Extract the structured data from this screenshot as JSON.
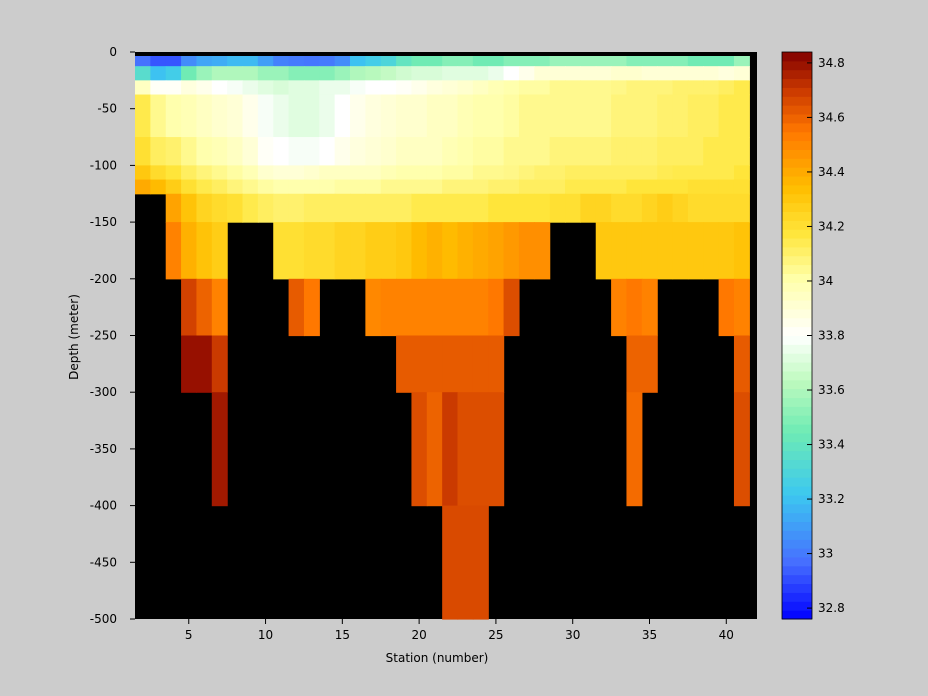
{
  "chart_data": {
    "type": "heatmap",
    "title": "",
    "xlabel": "Station (number)",
    "ylabel": "Depth (meter)",
    "xlim": [
      1.5,
      42
    ],
    "ylim": [
      -500,
      0
    ],
    "xticks": [
      5,
      10,
      15,
      20,
      25,
      30,
      35,
      40
    ],
    "yticks": [
      0,
      -50,
      -100,
      -150,
      -200,
      -250,
      -300,
      -350,
      -400,
      -450,
      -500
    ],
    "colorbar": {
      "range": [
        32.76,
        34.84
      ],
      "ticks": [
        32.8,
        33,
        33.2,
        33.4,
        33.6,
        33.8,
        34,
        34.2,
        34.4,
        34.6,
        34.8
      ],
      "colormap": "jet"
    },
    "grid": false,
    "legend": "none",
    "mask_color": "#000000",
    "background_color": "#cccccc",
    "cell_width_stations": 1,
    "depth_bins": [
      {
        "top": 0,
        "bottom": -12.5,
        "x": [
          2,
          3,
          4,
          5,
          6,
          7,
          8,
          9,
          10,
          11,
          12,
          13,
          14,
          15,
          16,
          17,
          18,
          19,
          20,
          21,
          22,
          23,
          24,
          25,
          26,
          27,
          28,
          29,
          30,
          31,
          32,
          33,
          34,
          35,
          36,
          37,
          38,
          39,
          40,
          41
        ],
        "values": [
          32.98,
          32.92,
          32.92,
          33.05,
          33.12,
          33.14,
          33.18,
          33.18,
          33.1,
          33.02,
          33.0,
          32.99,
          33.0,
          33.05,
          33.2,
          33.25,
          33.3,
          33.4,
          33.45,
          33.45,
          33.5,
          33.5,
          33.45,
          33.45,
          33.5,
          33.5,
          33.5,
          33.55,
          33.55,
          33.55,
          33.55,
          33.55,
          33.5,
          33.5,
          33.5,
          33.5,
          33.45,
          33.45,
          33.45,
          33.55
        ]
      },
      {
        "top": -12.5,
        "bottom": -25,
        "x": [
          2,
          3,
          4,
          5,
          6,
          7,
          8,
          9,
          10,
          11,
          12,
          13,
          14,
          15,
          16,
          17,
          18,
          19,
          20,
          21,
          22,
          23,
          24,
          25,
          26,
          27,
          28,
          29,
          30,
          31,
          32,
          33,
          34,
          35,
          36,
          37,
          38,
          39,
          40,
          41
        ],
        "values": [
          33.35,
          33.2,
          33.25,
          33.45,
          33.55,
          33.6,
          33.6,
          33.6,
          33.55,
          33.55,
          33.5,
          33.5,
          33.5,
          33.55,
          33.6,
          33.62,
          33.65,
          33.68,
          33.7,
          33.7,
          33.72,
          33.72,
          33.72,
          33.75,
          33.8,
          33.85,
          33.9,
          33.9,
          33.9,
          33.9,
          33.9,
          33.92,
          33.92,
          33.9,
          33.9,
          33.9,
          33.9,
          33.9,
          33.88,
          33.9
        ]
      },
      {
        "top": -25,
        "bottom": -37.5,
        "x": [
          2,
          3,
          4,
          5,
          6,
          7,
          8,
          9,
          10,
          11,
          12,
          13,
          14,
          15,
          16,
          17,
          18,
          19,
          20,
          21,
          22,
          23,
          24,
          25,
          26,
          27,
          28,
          29,
          30,
          31,
          32,
          33,
          34,
          35,
          36,
          37,
          38,
          39,
          40,
          41
        ],
        "values": [
          33.95,
          33.82,
          33.82,
          33.88,
          33.85,
          33.8,
          33.78,
          33.75,
          33.72,
          33.7,
          33.72,
          33.72,
          33.75,
          33.75,
          33.78,
          33.8,
          33.8,
          33.82,
          33.85,
          33.88,
          33.9,
          33.92,
          33.95,
          33.98,
          34.0,
          34.02,
          34.02,
          34.05,
          34.05,
          34.05,
          34.05,
          34.06,
          34.08,
          34.08,
          34.08,
          34.1,
          34.1,
          34.1,
          34.12,
          34.15
        ]
      },
      {
        "top": -37.5,
        "bottom": -75,
        "x": [
          2,
          3,
          4,
          5,
          6,
          7,
          8,
          9,
          10,
          11,
          12,
          13,
          14,
          15,
          16,
          17,
          18,
          19,
          20,
          21,
          22,
          23,
          24,
          25,
          26,
          27,
          28,
          29,
          30,
          31,
          32,
          33,
          34,
          35,
          36,
          37,
          38,
          39,
          40,
          41
        ],
        "values": [
          34.15,
          34.05,
          34.0,
          33.98,
          33.95,
          33.92,
          33.9,
          33.85,
          33.78,
          33.75,
          33.72,
          33.72,
          33.75,
          33.8,
          33.85,
          33.88,
          33.9,
          33.92,
          33.92,
          33.95,
          33.95,
          33.98,
          34.0,
          34.0,
          34.02,
          34.05,
          34.05,
          34.05,
          34.05,
          34.05,
          34.05,
          34.08,
          34.08,
          34.08,
          34.1,
          34.1,
          34.12,
          34.12,
          34.15,
          34.15
        ]
      },
      {
        "top": -75,
        "bottom": -100,
        "x": [
          2,
          3,
          4,
          5,
          6,
          7,
          8,
          9,
          10,
          11,
          12,
          13,
          14,
          15,
          16,
          17,
          18,
          19,
          20,
          21,
          22,
          23,
          24,
          25,
          26,
          27,
          28,
          29,
          30,
          31,
          32,
          33,
          34,
          35,
          36,
          37,
          38,
          39,
          40,
          41
        ],
        "values": [
          34.2,
          34.12,
          34.1,
          34.05,
          34.0,
          33.98,
          33.95,
          33.9,
          33.82,
          33.8,
          33.78,
          33.78,
          33.8,
          33.85,
          33.88,
          33.9,
          33.92,
          33.95,
          33.95,
          33.95,
          33.98,
          34.0,
          34.02,
          34.02,
          34.05,
          34.05,
          34.05,
          34.08,
          34.08,
          34.08,
          34.08,
          34.1,
          34.1,
          34.1,
          34.12,
          34.12,
          34.12,
          34.15,
          34.15,
          34.15
        ]
      },
      {
        "top": -100,
        "bottom": -112.5,
        "x": [
          2,
          3,
          4,
          5,
          6,
          7,
          8,
          9,
          10,
          11,
          12,
          13,
          14,
          15,
          16,
          17,
          18,
          19,
          20,
          21,
          22,
          23,
          24,
          25,
          26,
          27,
          28,
          29,
          30,
          31,
          32,
          33,
          34,
          35,
          36,
          37,
          38,
          39,
          40,
          41
        ],
        "values": [
          34.3,
          34.22,
          34.18,
          34.12,
          34.08,
          34.05,
          34.02,
          33.98,
          33.92,
          33.9,
          33.9,
          33.92,
          33.95,
          33.95,
          33.95,
          33.95,
          33.98,
          34.0,
          34.0,
          34.0,
          34.02,
          34.02,
          34.05,
          34.05,
          34.06,
          34.08,
          34.1,
          34.1,
          34.12,
          34.12,
          34.12,
          34.12,
          34.12,
          34.12,
          34.14,
          34.15,
          34.15,
          34.15,
          34.15,
          34.18
        ]
      },
      {
        "top": -112.5,
        "bottom": -125,
        "x": [
          2,
          3,
          4,
          5,
          6,
          7,
          8,
          9,
          10,
          11,
          12,
          13,
          14,
          15,
          16,
          17,
          18,
          19,
          20,
          21,
          22,
          23,
          24,
          25,
          26,
          27,
          28,
          29,
          30,
          31,
          32,
          33,
          34,
          35,
          36,
          37,
          38,
          39,
          40,
          41
        ],
        "values": [
          34.4,
          34.35,
          34.28,
          34.2,
          34.15,
          34.12,
          34.08,
          34.05,
          34.02,
          34.0,
          34.0,
          34.0,
          34.0,
          34.02,
          34.02,
          34.02,
          34.05,
          34.05,
          34.05,
          34.05,
          34.08,
          34.08,
          34.08,
          34.1,
          34.1,
          34.12,
          34.12,
          34.12,
          34.15,
          34.15,
          34.15,
          34.15,
          34.18,
          34.18,
          34.18,
          34.18,
          34.2,
          34.2,
          34.2,
          34.2
        ]
      },
      {
        "top": -125,
        "bottom": -150,
        "x": [
          4,
          5,
          6,
          7,
          8,
          9,
          10,
          11,
          12,
          13,
          14,
          15,
          16,
          17,
          18,
          19,
          20,
          21,
          22,
          23,
          24,
          25,
          26,
          27,
          28,
          29,
          30,
          31,
          32,
          33,
          34,
          35,
          36,
          37,
          38,
          39,
          40,
          41
        ],
        "values": [
          34.42,
          34.32,
          34.25,
          34.22,
          34.2,
          34.15,
          34.12,
          34.1,
          34.1,
          34.12,
          34.12,
          34.12,
          34.12,
          34.12,
          34.12,
          34.12,
          34.15,
          34.15,
          34.15,
          34.15,
          34.15,
          34.18,
          34.18,
          34.18,
          34.18,
          34.2,
          34.2,
          34.25,
          34.25,
          34.22,
          34.22,
          34.25,
          34.28,
          34.25,
          34.22,
          34.22,
          34.22,
          34.22
        ]
      },
      {
        "top": -150,
        "bottom": -200,
        "x": [
          4,
          5,
          6,
          7,
          11,
          12,
          13,
          14,
          15,
          16,
          17,
          18,
          19,
          20,
          21,
          22,
          23,
          24,
          25,
          26,
          27,
          28,
          32,
          33,
          34,
          35,
          36,
          37,
          38,
          39,
          40,
          41
        ],
        "values": [
          34.52,
          34.38,
          34.32,
          34.28,
          34.2,
          34.2,
          34.22,
          34.22,
          34.25,
          34.25,
          34.28,
          34.28,
          34.3,
          34.35,
          34.38,
          34.35,
          34.38,
          34.4,
          34.42,
          34.45,
          34.48,
          34.48,
          34.3,
          34.3,
          34.3,
          34.3,
          34.3,
          34.3,
          34.3,
          34.3,
          34.3,
          34.32
        ]
      },
      {
        "top": -200,
        "bottom": -250,
        "x": [
          5,
          6,
          7,
          12,
          13,
          17,
          18,
          19,
          20,
          21,
          22,
          23,
          24,
          25,
          26,
          33,
          34,
          35,
          40,
          41
        ],
        "values": [
          34.68,
          34.6,
          34.52,
          34.62,
          34.55,
          34.5,
          34.52,
          34.52,
          34.52,
          34.52,
          34.52,
          34.52,
          34.52,
          34.55,
          34.65,
          34.52,
          34.55,
          34.52,
          34.55,
          34.52
        ]
      },
      {
        "top": -250,
        "bottom": -300,
        "x": [
          5,
          6,
          7,
          19,
          20,
          21,
          22,
          23,
          24,
          25,
          34,
          35,
          41
        ],
        "values": [
          34.8,
          34.8,
          34.7,
          34.62,
          34.62,
          34.62,
          34.62,
          34.62,
          34.62,
          34.62,
          34.6,
          34.6,
          34.62
        ]
      },
      {
        "top": -300,
        "bottom": -400,
        "x": [
          7,
          20,
          21,
          22,
          23,
          24,
          25,
          34,
          41
        ],
        "values": [
          34.78,
          34.65,
          34.6,
          34.7,
          34.65,
          34.65,
          34.65,
          34.58,
          34.65
        ]
      },
      {
        "top": -400,
        "bottom": -500,
        "x": [
          22,
          23,
          24
        ],
        "values": [
          34.66,
          34.66,
          34.66
        ]
      }
    ]
  }
}
